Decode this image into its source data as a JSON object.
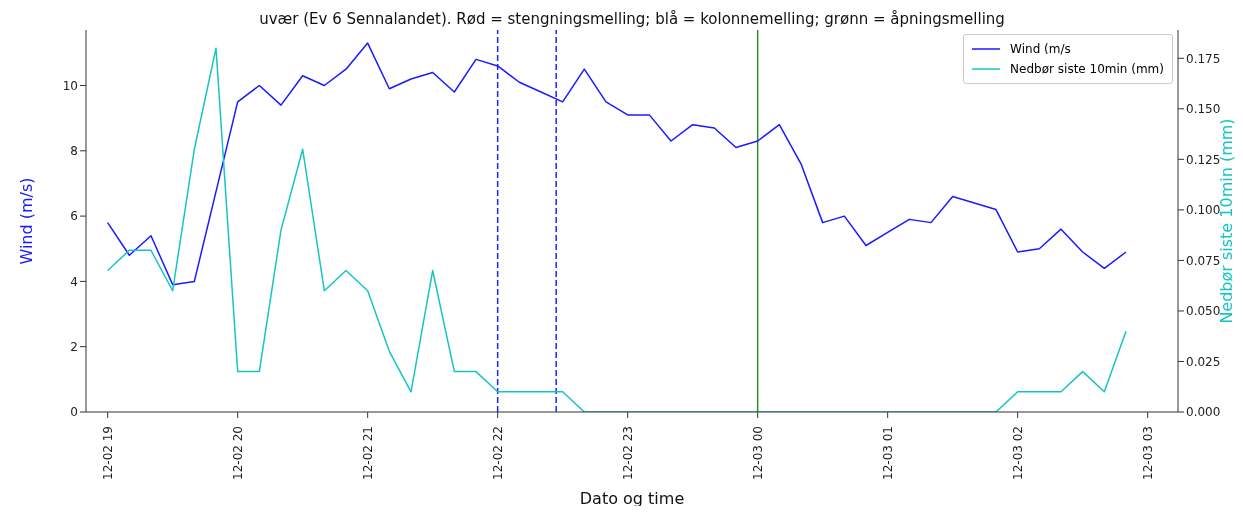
{
  "chart_data": {
    "type": "line",
    "title": "uvær (Ev 6 Sennalandet). Rød = stengningsmelling; blå = kolonnemelling; grønn = åpningsmelling",
    "xlabel": "Dato og time",
    "ylabel": "Wind (m/s)",
    "y2label": "Nedbør siste 10min (mm)",
    "x": [
      "--12-02T19:00",
      "--12-02T19:10",
      "--12-02T19:20",
      "--12-02T19:30",
      "--12-02T19:40",
      "--12-02T19:50",
      "--12-02T20:00",
      "--12-02T20:10",
      "--12-02T20:20",
      "--12-02T20:30",
      "--12-02T20:40",
      "--12-02T20:50",
      "--12-02T21:00",
      "--12-02T21:10",
      "--12-02T21:20",
      "--12-02T21:30",
      "--12-02T21:40",
      "--12-02T21:50",
      "--12-02T22:00",
      "--12-02T22:10",
      "--12-02T22:20",
      "--12-02T22:30",
      "--12-02T22:40",
      "--12-02T22:50",
      "--12-02T23:00",
      "--12-02T23:10",
      "--12-02T23:20",
      "--12-02T23:30",
      "--12-02T23:40",
      "--12-02T23:50",
      "--12-03T00:00",
      "--12-03T00:10",
      "--12-03T00:20",
      "--12-03T00:30",
      "--12-03T00:40",
      "--12-03T00:50",
      "--12-03T01:00",
      "--12-03T01:10",
      "--12-03T01:20",
      "--12-03T01:30",
      "--12-03T01:40",
      "--12-03T01:50",
      "--12-03T02:00",
      "--12-03T02:10",
      "--12-03T02:20",
      "--12-03T02:30",
      "--12-03T02:40",
      "--12-03T02:50"
    ],
    "series": [
      {
        "name": "Wind (m/s",
        "color": "#1a1aff",
        "values": [
          5.8,
          4.8,
          5.4,
          3.9,
          4.0,
          6.75,
          9.5,
          10.0,
          9.4,
          10.3,
          10.0,
          10.5,
          11.3,
          9.9,
          10.2,
          10.4,
          9.8,
          10.8,
          10.6,
          10.1,
          9.8,
          9.5,
          10.5,
          9.5,
          9.1,
          9.1,
          8.3,
          8.8,
          8.7,
          8.1,
          8.3,
          8.8,
          7.6,
          5.8,
          6.0,
          5.1,
          5.5,
          5.9,
          5.8,
          6.6,
          6.4,
          6.2,
          4.9,
          5.0,
          5.6,
          4.9,
          4.4,
          4.9
        ]
      },
      {
        "name": "Nedbør siste 10min (mm)",
        "color": "#17c4c4",
        "axis": "y2",
        "values": [
          0.07,
          0.08,
          0.08,
          0.06,
          0.13,
          0.18,
          0.02,
          0.02,
          0.09,
          0.13,
          0.06,
          0.07,
          0.06,
          0.03,
          0.01,
          0.07,
          0.02,
          0.02,
          0.01,
          0.01,
          0.01,
          0.01,
          0,
          0,
          0,
          0,
          0,
          0,
          0,
          0,
          0,
          0,
          0,
          0,
          0,
          0,
          0,
          0,
          0,
          0,
          0,
          0,
          0.01,
          0.01,
          0.01,
          0.02,
          0.01,
          0.04
        ]
      }
    ],
    "xlim": [
      "--12-02T18:50",
      "--12-03T03:14"
    ],
    "xticks": [
      {
        "value": "--12-02T19:00",
        "label": "12-02 19"
      },
      {
        "value": "--12-02T20:00",
        "label": "12-02 20"
      },
      {
        "value": "--12-02T21:00",
        "label": "12-02 21"
      },
      {
        "value": "--12-02T22:00",
        "label": "12-02 22"
      },
      {
        "value": "--12-02T23:00",
        "label": "12-02 23"
      },
      {
        "value": "--12-03T00:00",
        "label": "12-03 00"
      },
      {
        "value": "--12-03T01:00",
        "label": "12-03 01"
      },
      {
        "value": "--12-03T02:00",
        "label": "12-03 02"
      },
      {
        "value": "--12-03T03:00",
        "label": "12-03 03"
      }
    ],
    "ylim": [
      0,
      11.7
    ],
    "yticks": [
      0,
      2,
      4,
      6,
      8,
      10
    ],
    "y2lim": [
      0,
      0.189
    ],
    "y2ticks": [
      {
        "value": 0,
        "label": "0.000"
      },
      {
        "value": 0.025,
        "label": "0.025"
      },
      {
        "value": 0.05,
        "label": "0.050"
      },
      {
        "value": 0.075,
        "label": "0.075"
      },
      {
        "value": 0.1,
        "label": "0.100"
      },
      {
        "value": 0.125,
        "label": "0.125"
      },
      {
        "value": 0.15,
        "label": "0.150"
      },
      {
        "value": 0.175,
        "label": "0.175"
      }
    ],
    "ref_lines": [
      {
        "axis": "x",
        "value": "--12-02T22:00",
        "color": "#2020ff",
        "line_style": "dashed"
      },
      {
        "axis": "x",
        "value": "--12-02T22:27",
        "color": "#2020ff",
        "line_style": "dashed"
      },
      {
        "axis": "x",
        "value": "--12-03T00:00",
        "color": "#2e8b2e",
        "line_style": "solid"
      }
    ],
    "grid": false,
    "legend": "top right",
    "marker": "none",
    "line_style": "solid"
  }
}
